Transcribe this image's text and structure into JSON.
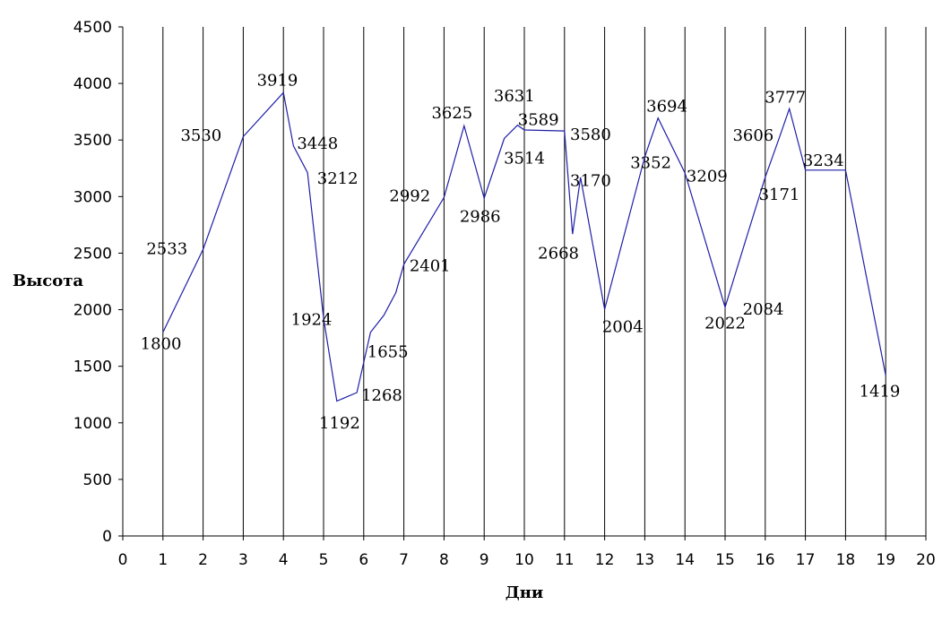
{
  "chart_data": {
    "type": "line",
    "title": "",
    "xlabel": "Дни",
    "ylabel": "Высота",
    "xlim": [
      0,
      20
    ],
    "ylim": [
      0,
      4500
    ],
    "x_ticks": [
      0,
      1,
      2,
      3,
      4,
      5,
      6,
      7,
      8,
      9,
      10,
      11,
      12,
      13,
      14,
      15,
      16,
      17,
      18,
      19,
      20
    ],
    "y_ticks": [
      0,
      500,
      1000,
      1500,
      2000,
      2500,
      3000,
      3500,
      4000,
      4500
    ],
    "grid": {
      "vertical": true,
      "horizontal": false
    },
    "line_color": "#1f1fa8",
    "series": [
      {
        "points": [
          {
            "x": 1,
            "y": 1800
          },
          {
            "x": 2,
            "y": 2533
          },
          {
            "x": 3,
            "y": 3530
          },
          {
            "x": 4,
            "y": 3919
          },
          {
            "x": 4.25,
            "y": 3448
          },
          {
            "x": 4.6,
            "y": 3212
          },
          {
            "x": 5,
            "y": 1924
          },
          {
            "x": 5.33,
            "y": 1192
          },
          {
            "x": 5.83,
            "y": 1268
          },
          {
            "x": 6.17,
            "y": 1800
          },
          {
            "x": 6.5,
            "y": 1950
          },
          {
            "x": 6.8,
            "y": 2150
          },
          {
            "x": 7,
            "y": 2401
          },
          {
            "x": 8,
            "y": 2992
          },
          {
            "x": 8.5,
            "y": 3625
          },
          {
            "x": 9,
            "y": 2986
          },
          {
            "x": 9.5,
            "y": 3514
          },
          {
            "x": 9.83,
            "y": 3631
          },
          {
            "x": 10,
            "y": 3589
          },
          {
            "x": 11,
            "y": 3580
          },
          {
            "x": 11.2,
            "y": 2668
          },
          {
            "x": 11.4,
            "y": 3170
          },
          {
            "x": 12,
            "y": 2004
          },
          {
            "x": 13,
            "y": 3352
          },
          {
            "x": 13.33,
            "y": 3694
          },
          {
            "x": 14,
            "y": 3209
          },
          {
            "x": 15,
            "y": 2022
          },
          {
            "x": 15.5,
            "y": 2600
          },
          {
            "x": 16,
            "y": 3171
          },
          {
            "x": 16.33,
            "y": 3500
          },
          {
            "x": 16.6,
            "y": 3777
          },
          {
            "x": 17,
            "y": 3234
          },
          {
            "x": 18,
            "y": 3234
          },
          {
            "x": 19,
            "y": 1419
          }
        ]
      }
    ],
    "data_labels": [
      {
        "text": "1800",
        "x": 0.95,
        "y": 1700
      },
      {
        "text": "2533",
        "x": 1.1,
        "y": 2540
      },
      {
        "text": "3530",
        "x": 1.95,
        "y": 3540
      },
      {
        "text": "3919",
        "x": 3.85,
        "y": 4030
      },
      {
        "text": "3448",
        "x": 4.85,
        "y": 3470
      },
      {
        "text": "3212",
        "x": 5.35,
        "y": 3160
      },
      {
        "text": "1924",
        "x": 4.7,
        "y": 1915
      },
      {
        "text": "1192",
        "x": 5.4,
        "y": 1000
      },
      {
        "text": "1268",
        "x": 6.45,
        "y": 1245
      },
      {
        "text": "1655",
        "x": 6.6,
        "y": 1630
      },
      {
        "text": "2401",
        "x": 7.65,
        "y": 2390
      },
      {
        "text": "2992",
        "x": 7.15,
        "y": 3005
      },
      {
        "text": "3625",
        "x": 8.2,
        "y": 3740
      },
      {
        "text": "2986",
        "x": 8.9,
        "y": 2825
      },
      {
        "text": "3631",
        "x": 9.75,
        "y": 3890
      },
      {
        "text": "3589",
        "x": 10.35,
        "y": 3680
      },
      {
        "text": "3514",
        "x": 10.0,
        "y": 3340
      },
      {
        "text": "3580",
        "x": 11.65,
        "y": 3550
      },
      {
        "text": "3170",
        "x": 11.65,
        "y": 3140
      },
      {
        "text": "2668",
        "x": 10.85,
        "y": 2500
      },
      {
        "text": "2004",
        "x": 12.45,
        "y": 1850
      },
      {
        "text": "3352",
        "x": 13.15,
        "y": 3300
      },
      {
        "text": "3694",
        "x": 13.55,
        "y": 3800
      },
      {
        "text": "3209",
        "x": 14.55,
        "y": 3180
      },
      {
        "text": "2022",
        "x": 15.0,
        "y": 1880
      },
      {
        "text": "2084",
        "x": 15.95,
        "y": 2005
      },
      {
        "text": "3606",
        "x": 15.7,
        "y": 3540
      },
      {
        "text": "3171",
        "x": 16.35,
        "y": 3020
      },
      {
        "text": "3777",
        "x": 16.5,
        "y": 3880
      },
      {
        "text": "3234",
        "x": 17.45,
        "y": 3320
      },
      {
        "text": "1419",
        "x": 18.85,
        "y": 1280
      }
    ]
  }
}
